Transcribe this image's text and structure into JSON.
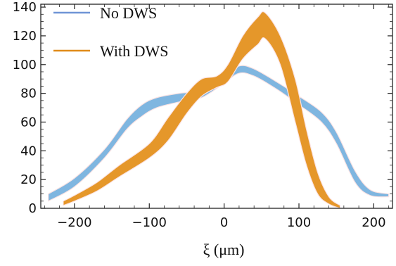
{
  "chart_data": {
    "type": "area",
    "xlabel": "ξ (μm)",
    "ylabel": "",
    "title": "",
    "xlim": [
      -245,
      225
    ],
    "ylim": [
      0,
      142
    ],
    "xticks": [
      -200,
      -100,
      0,
      100,
      200
    ],
    "yticks": [
      0,
      20,
      40,
      60,
      80,
      100,
      120,
      140
    ],
    "grid": false,
    "legend_position": "top-left",
    "series": [
      {
        "name": "No DWS",
        "color": "#7fb6e0",
        "legend_color": "#6f95d6",
        "band": [
          {
            "x": -235,
            "lo": 5,
            "hi": 10
          },
          {
            "x": -200,
            "lo": 15,
            "hi": 21
          },
          {
            "x": -160,
            "lo": 35,
            "hi": 41
          },
          {
            "x": -130,
            "lo": 55,
            "hi": 62
          },
          {
            "x": -110,
            "lo": 64,
            "hi": 72
          },
          {
            "x": -90,
            "lo": 70,
            "hi": 77
          },
          {
            "x": -60,
            "lo": 74,
            "hi": 80
          },
          {
            "x": -30,
            "lo": 77,
            "hi": 82
          },
          {
            "x": 0,
            "lo": 87,
            "hi": 91
          },
          {
            "x": 20,
            "lo": 94,
            "hi": 99
          },
          {
            "x": 40,
            "lo": 92,
            "hi": 97
          },
          {
            "x": 70,
            "lo": 83,
            "hi": 88
          },
          {
            "x": 100,
            "lo": 72,
            "hi": 78
          },
          {
            "x": 130,
            "lo": 60,
            "hi": 67
          },
          {
            "x": 150,
            "lo": 45,
            "hi": 53
          },
          {
            "x": 175,
            "lo": 18,
            "hi": 26
          },
          {
            "x": 195,
            "lo": 9,
            "hi": 13
          },
          {
            "x": 220,
            "lo": 8,
            "hi": 10
          }
        ]
      },
      {
        "name": "With DWS",
        "color": "#e5972a",
        "legend_color": "#e08b1a",
        "band": [
          {
            "x": -215,
            "lo": 2,
            "hi": 5
          },
          {
            "x": -200,
            "lo": 5,
            "hi": 9
          },
          {
            "x": -170,
            "lo": 12,
            "hi": 18
          },
          {
            "x": -140,
            "lo": 22,
            "hi": 30
          },
          {
            "x": -100,
            "lo": 35,
            "hi": 45
          },
          {
            "x": -75,
            "lo": 47,
            "hi": 63
          },
          {
            "x": -50,
            "lo": 66,
            "hi": 80
          },
          {
            "x": -30,
            "lo": 78,
            "hi": 90
          },
          {
            "x": -10,
            "lo": 84,
            "hi": 92
          },
          {
            "x": 5,
            "lo": 88,
            "hi": 100
          },
          {
            "x": 25,
            "lo": 104,
            "hi": 120
          },
          {
            "x": 45,
            "lo": 114,
            "hi": 133
          },
          {
            "x": 55,
            "lo": 118,
            "hi": 136
          },
          {
            "x": 75,
            "lo": 100,
            "hi": 120
          },
          {
            "x": 95,
            "lo": 60,
            "hi": 90
          },
          {
            "x": 110,
            "lo": 30,
            "hi": 55
          },
          {
            "x": 125,
            "lo": 10,
            "hi": 25
          },
          {
            "x": 140,
            "lo": 3,
            "hi": 8
          },
          {
            "x": 155,
            "lo": 0,
            "hi": 2
          }
        ]
      }
    ]
  }
}
